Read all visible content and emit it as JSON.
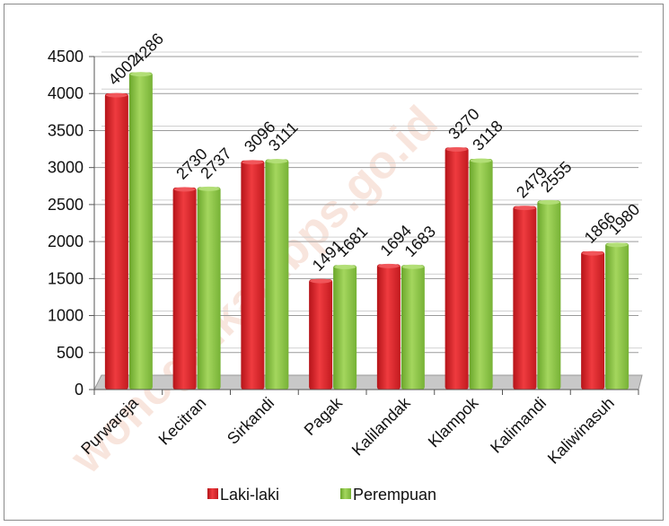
{
  "watermark": "wonogirikab.bps.go.id",
  "chart_data": {
    "type": "bar",
    "title": "",
    "xlabel": "",
    "ylabel": "",
    "ylim": [
      0,
      4500
    ],
    "yticks": [
      0,
      500,
      1000,
      1500,
      2000,
      2500,
      3000,
      3500,
      4000,
      4500
    ],
    "grid": true,
    "legend_position": "bottom",
    "categories": [
      "Purwareja",
      "Kecitran",
      "Sirkandi",
      "Pagak",
      "Kalilandak",
      "Klampok",
      "Kalimandi",
      "Kaliwinasuh"
    ],
    "series": [
      {
        "name": "Laki-laki",
        "color": "#e8262b",
        "values": [
          4002,
          2730,
          3096,
          1491,
          1694,
          3270,
          2479,
          1866
        ]
      },
      {
        "name": "Perempuan",
        "color": "#8cc63f",
        "values": [
          4286,
          2737,
          3111,
          1681,
          1683,
          3118,
          2555,
          1980
        ]
      }
    ]
  }
}
